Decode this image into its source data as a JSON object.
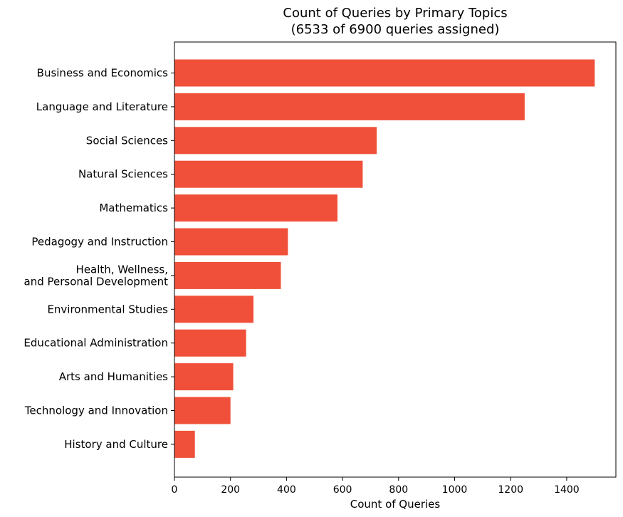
{
  "chart_data": {
    "type": "bar",
    "orientation": "horizontal",
    "title": "Count of Queries by Primary Topics",
    "subtitle": "(6533 of 6900 queries assigned)",
    "xlabel": "Count of Queries",
    "ylabel": "",
    "xlim": [
      0,
      1580
    ],
    "xticks": [
      0,
      200,
      400,
      600,
      800,
      1000,
      1200,
      1400
    ],
    "grid": false,
    "bar_color": "#f05039",
    "categories": [
      "Business and Economics",
      "Language and Literature",
      "Social Sciences",
      "Natural Sciences",
      "Mathematics",
      "Pedagogy and Instruction",
      "Health, Wellness,\nand Personal Development",
      "Environmental Studies",
      "Educational Administration",
      "Arts and Humanities",
      "Technology and Innovation",
      "History and Culture"
    ],
    "values": [
      1500,
      1250,
      722,
      672,
      582,
      405,
      380,
      282,
      256,
      210,
      200,
      73
    ]
  }
}
